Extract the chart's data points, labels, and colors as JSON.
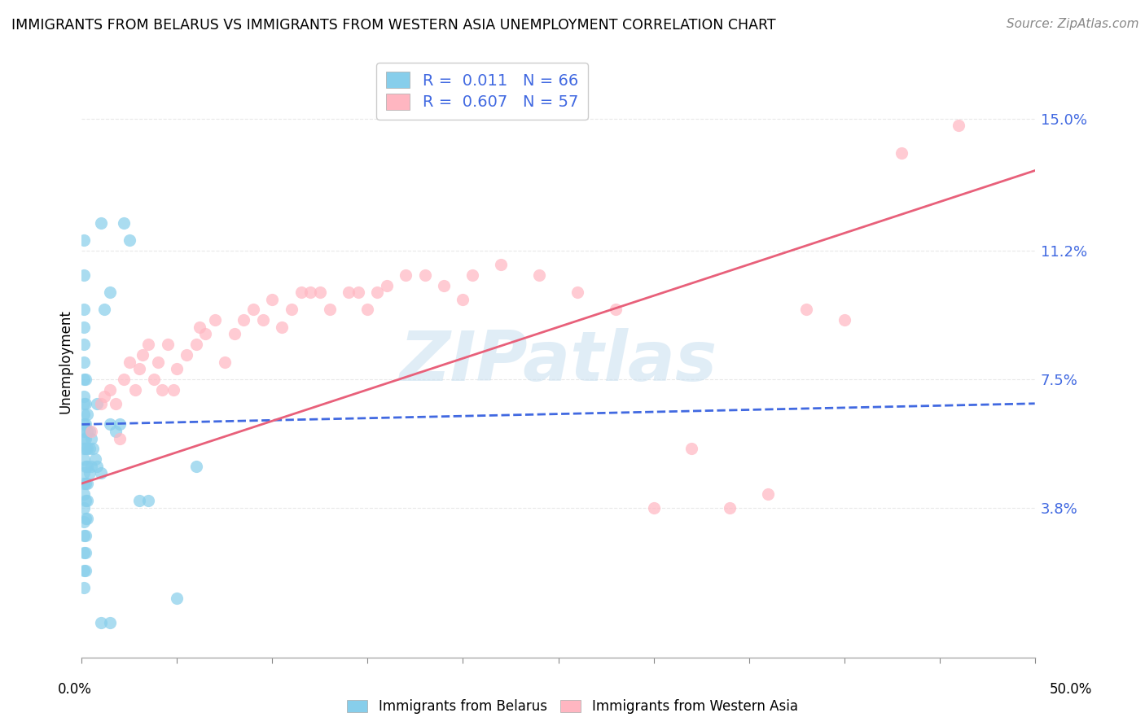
{
  "title": "IMMIGRANTS FROM BELARUS VS IMMIGRANTS FROM WESTERN ASIA UNEMPLOYMENT CORRELATION CHART",
  "source": "Source: ZipAtlas.com",
  "ylabel": "Unemployment",
  "y_ticks": [
    0.0,
    0.038,
    0.075,
    0.112,
    0.15
  ],
  "y_tick_labels": [
    "",
    "3.8%",
    "7.5%",
    "11.2%",
    "15.0%"
  ],
  "x_lim": [
    0.0,
    0.5
  ],
  "y_lim": [
    -0.005,
    0.165
  ],
  "watermark": "ZIPatlas",
  "belarus_color": "#87CEEB",
  "western_asia_color": "#FFB6C1",
  "belarus_trend_color": "#4169E1",
  "western_asia_trend_color": "#E8607A",
  "background_color": "#FFFFFF",
  "grid_color": "#E8E8E8",
  "belarus_scatter": [
    [
      0.001,
      0.115
    ],
    [
      0.001,
      0.105
    ],
    [
      0.001,
      0.095
    ],
    [
      0.001,
      0.09
    ],
    [
      0.001,
      0.085
    ],
    [
      0.001,
      0.08
    ],
    [
      0.001,
      0.075
    ],
    [
      0.001,
      0.07
    ],
    [
      0.001,
      0.068
    ],
    [
      0.001,
      0.065
    ],
    [
      0.001,
      0.062
    ],
    [
      0.001,
      0.06
    ],
    [
      0.001,
      0.058
    ],
    [
      0.001,
      0.055
    ],
    [
      0.001,
      0.052
    ],
    [
      0.001,
      0.048
    ],
    [
      0.001,
      0.045
    ],
    [
      0.001,
      0.042
    ],
    [
      0.001,
      0.038
    ],
    [
      0.001,
      0.034
    ],
    [
      0.001,
      0.03
    ],
    [
      0.001,
      0.025
    ],
    [
      0.001,
      0.02
    ],
    [
      0.001,
      0.015
    ],
    [
      0.002,
      0.075
    ],
    [
      0.002,
      0.068
    ],
    [
      0.002,
      0.062
    ],
    [
      0.002,
      0.058
    ],
    [
      0.002,
      0.055
    ],
    [
      0.002,
      0.05
    ],
    [
      0.002,
      0.045
    ],
    [
      0.002,
      0.04
    ],
    [
      0.002,
      0.035
    ],
    [
      0.002,
      0.03
    ],
    [
      0.002,
      0.025
    ],
    [
      0.002,
      0.02
    ],
    [
      0.003,
      0.065
    ],
    [
      0.003,
      0.06
    ],
    [
      0.003,
      0.055
    ],
    [
      0.003,
      0.05
    ],
    [
      0.003,
      0.045
    ],
    [
      0.003,
      0.04
    ],
    [
      0.003,
      0.035
    ],
    [
      0.004,
      0.06
    ],
    [
      0.004,
      0.055
    ],
    [
      0.004,
      0.048
    ],
    [
      0.005,
      0.058
    ],
    [
      0.005,
      0.05
    ],
    [
      0.006,
      0.055
    ],
    [
      0.007,
      0.052
    ],
    [
      0.008,
      0.05
    ],
    [
      0.01,
      0.048
    ],
    [
      0.015,
      0.062
    ],
    [
      0.018,
      0.06
    ],
    [
      0.02,
      0.062
    ],
    [
      0.025,
      0.115
    ],
    [
      0.03,
      0.04
    ],
    [
      0.035,
      0.04
    ],
    [
      0.05,
      0.012
    ],
    [
      0.06,
      0.05
    ],
    [
      0.01,
      0.005
    ],
    [
      0.015,
      0.005
    ],
    [
      0.01,
      0.12
    ],
    [
      0.022,
      0.12
    ],
    [
      0.015,
      0.1
    ],
    [
      0.012,
      0.095
    ],
    [
      0.008,
      0.068
    ]
  ],
  "western_asia_scatter": [
    [
      0.005,
      0.06
    ],
    [
      0.01,
      0.068
    ],
    [
      0.012,
      0.07
    ],
    [
      0.015,
      0.072
    ],
    [
      0.018,
      0.068
    ],
    [
      0.02,
      0.058
    ],
    [
      0.022,
      0.075
    ],
    [
      0.025,
      0.08
    ],
    [
      0.028,
      0.072
    ],
    [
      0.03,
      0.078
    ],
    [
      0.032,
      0.082
    ],
    [
      0.035,
      0.085
    ],
    [
      0.038,
      0.075
    ],
    [
      0.04,
      0.08
    ],
    [
      0.042,
      0.072
    ],
    [
      0.045,
      0.085
    ],
    [
      0.048,
      0.072
    ],
    [
      0.05,
      0.078
    ],
    [
      0.055,
      0.082
    ],
    [
      0.06,
      0.085
    ],
    [
      0.062,
      0.09
    ],
    [
      0.065,
      0.088
    ],
    [
      0.07,
      0.092
    ],
    [
      0.075,
      0.08
    ],
    [
      0.08,
      0.088
    ],
    [
      0.085,
      0.092
    ],
    [
      0.09,
      0.095
    ],
    [
      0.095,
      0.092
    ],
    [
      0.1,
      0.098
    ],
    [
      0.105,
      0.09
    ],
    [
      0.11,
      0.095
    ],
    [
      0.115,
      0.1
    ],
    [
      0.12,
      0.1
    ],
    [
      0.125,
      0.1
    ],
    [
      0.13,
      0.095
    ],
    [
      0.14,
      0.1
    ],
    [
      0.145,
      0.1
    ],
    [
      0.15,
      0.095
    ],
    [
      0.155,
      0.1
    ],
    [
      0.16,
      0.102
    ],
    [
      0.17,
      0.105
    ],
    [
      0.18,
      0.105
    ],
    [
      0.19,
      0.102
    ],
    [
      0.2,
      0.098
    ],
    [
      0.205,
      0.105
    ],
    [
      0.22,
      0.108
    ],
    [
      0.24,
      0.105
    ],
    [
      0.26,
      0.1
    ],
    [
      0.28,
      0.095
    ],
    [
      0.3,
      0.038
    ],
    [
      0.32,
      0.055
    ],
    [
      0.34,
      0.038
    ],
    [
      0.36,
      0.042
    ],
    [
      0.38,
      0.095
    ],
    [
      0.4,
      0.092
    ],
    [
      0.43,
      0.14
    ],
    [
      0.46,
      0.148
    ]
  ]
}
